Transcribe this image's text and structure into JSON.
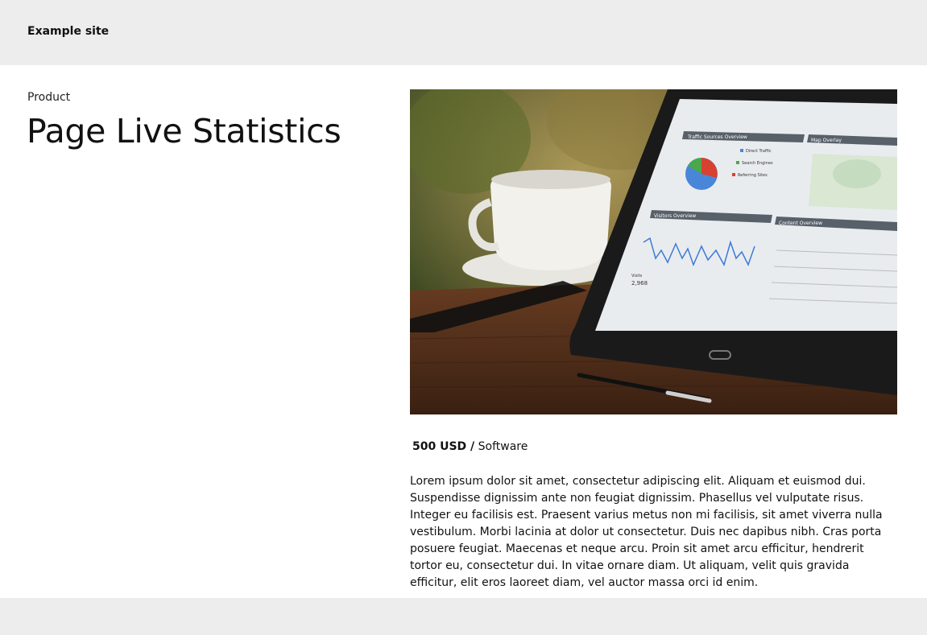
{
  "header": {
    "site_name": "Example site"
  },
  "product": {
    "category": "Product",
    "title": "Page Live Statistics",
    "price": "500 USD /",
    "type": "Software",
    "description": "Lorem ipsum dolor sit amet, consectetur adipiscing elit. Aliquam et euismod dui. Suspendisse dignissim ante non feugiat dignissim. Phasellus vel vulputate risus. Integer eu facilisis est. Praesent varius metus non mi facilisis, sit amet viverra nulla vestibulum. Morbi lacinia at dolor ut consectetur. Duis nec dapibus nibh. Cras porta posuere feugiat. Maecenas et neque arcu. Proin sit amet arcu efficitur, hendrerit tortor eu, consectetur dui. In vitae ornare diam. Ut aliquam, velit quis gravida efficitur, elit eros laoreet diam, vel auctor massa orci id enim."
  },
  "image": {
    "panels": {
      "traffic": "Traffic Sources Overview",
      "map": "Map Overlay",
      "visitors": "Visitors Overview",
      "content": "Content Overview"
    },
    "legend": [
      "Direct Traffic",
      "Search Engines",
      "Referring Sites"
    ],
    "visits_label": "Visits",
    "visits_value": "2,968"
  }
}
